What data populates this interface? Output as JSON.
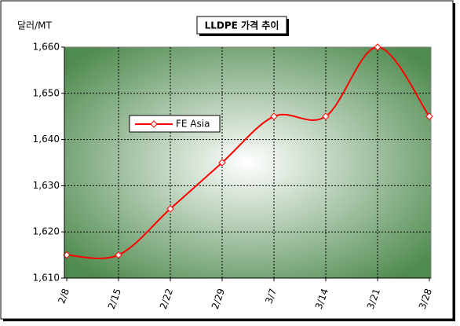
{
  "chart_data": {
    "type": "line",
    "title": "LLDPE 가격 추이",
    "y_label": "달러/MT",
    "categories": [
      "2/8",
      "2/15",
      "2/22",
      "2/29",
      "3/7",
      "3/14",
      "3/21",
      "3/28"
    ],
    "series": [
      {
        "name": "FE Asia",
        "color": "#ff0000",
        "values": [
          1615,
          1615,
          1625,
          1635,
          1645,
          1645,
          1660,
          1645
        ]
      }
    ],
    "ylim": [
      1610,
      1660
    ],
    "yticks": [
      {
        "value": 1610,
        "label": "1,610"
      },
      {
        "value": 1620,
        "label": "1,620"
      },
      {
        "value": 1630,
        "label": "1,630"
      },
      {
        "value": 1640,
        "label": "1,640"
      },
      {
        "value": 1650,
        "label": "1,650"
      },
      {
        "value": 1660,
        "label": "1,660"
      }
    ],
    "grid": true
  }
}
